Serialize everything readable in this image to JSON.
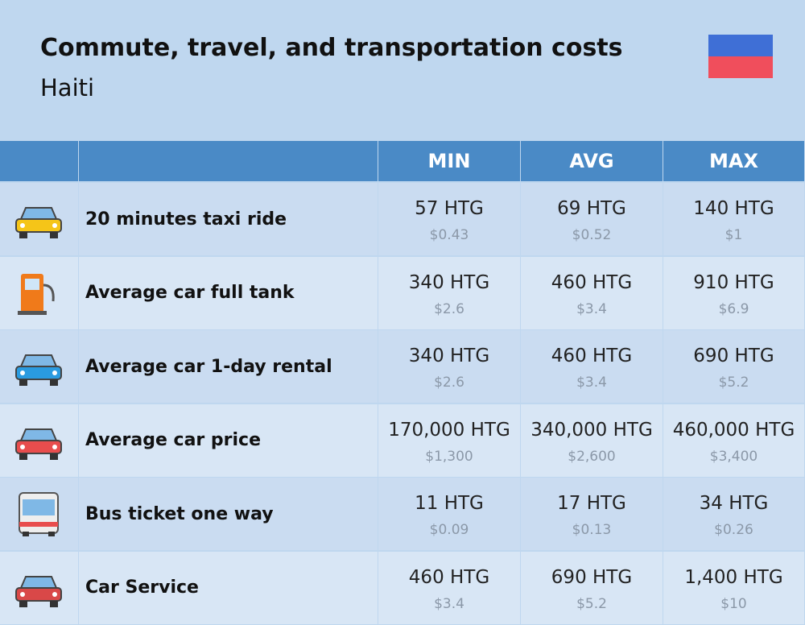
{
  "header": {
    "title": "Commute, travel, and transportation costs",
    "subtitle": "Haiti"
  },
  "table": {
    "columns": [
      "MIN",
      "AVG",
      "MAX"
    ],
    "rows": [
      {
        "label": "20 minutes taxi ride",
        "cells": [
          {
            "main": "57 HTG",
            "sub": "$0.43"
          },
          {
            "main": "69 HTG",
            "sub": "$0.52"
          },
          {
            "main": "140 HTG",
            "sub": "$1"
          }
        ]
      },
      {
        "label": "Average car full tank",
        "cells": [
          {
            "main": "340 HTG",
            "sub": "$2.6"
          },
          {
            "main": "460 HTG",
            "sub": "$3.4"
          },
          {
            "main": "910 HTG",
            "sub": "$6.9"
          }
        ]
      },
      {
        "label": "Average car 1-day rental",
        "cells": [
          {
            "main": "340 HTG",
            "sub": "$2.6"
          },
          {
            "main": "460 HTG",
            "sub": "$3.4"
          },
          {
            "main": "690 HTG",
            "sub": "$5.2"
          }
        ]
      },
      {
        "label": "Average car price",
        "cells": [
          {
            "main": "170,000 HTG",
            "sub": "$1,300"
          },
          {
            "main": "340,000 HTG",
            "sub": "$2,600"
          },
          {
            "main": "460,000 HTG",
            "sub": "$3,400"
          }
        ]
      },
      {
        "label": "Bus ticket one way",
        "cells": [
          {
            "main": "11 HTG",
            "sub": "$0.09"
          },
          {
            "main": "17 HTG",
            "sub": "$0.13"
          },
          {
            "main": "34 HTG",
            "sub": "$0.26"
          }
        ]
      },
      {
        "label": "Car Service",
        "cells": [
          {
            "main": "460 HTG",
            "sub": "$3.4"
          },
          {
            "main": "690 HTG",
            "sub": "$5.2"
          },
          {
            "main": "1,400 HTG",
            "sub": "$10"
          }
        ]
      }
    ]
  }
}
